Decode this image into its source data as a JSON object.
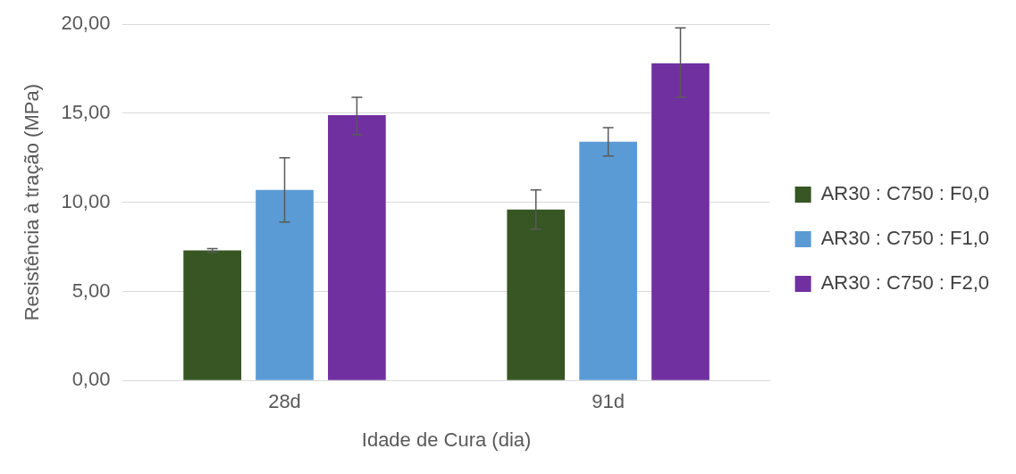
{
  "chart_data": {
    "type": "bar",
    "xlabel": "Idade de Cura (dia)",
    "ylabel": "Resistência à tração (MPa)",
    "categories": [
      "28d",
      "91d"
    ],
    "series": [
      {
        "name": "AR30 : C750 : F0,0",
        "color": "#375623",
        "values": [
          7.3,
          9.6
        ],
        "errors": [
          [
            7.2,
            7.4
          ],
          [
            8.5,
            10.7
          ]
        ]
      },
      {
        "name": "AR30 : C750 : F1,0",
        "color": "#5b9bd5",
        "values": [
          10.7,
          13.4
        ],
        "errors": [
          [
            8.9,
            12.5
          ],
          [
            12.6,
            14.2
          ]
        ]
      },
      {
        "name": "AR30 : C750 : F2,0",
        "color": "#7030a0",
        "values": [
          14.9,
          17.8
        ],
        "errors": [
          [
            13.8,
            15.9
          ],
          [
            15.9,
            19.8
          ]
        ]
      }
    ],
    "ylim": [
      0,
      20
    ],
    "yticks": [
      {
        "value": 0,
        "label": "0,00"
      },
      {
        "value": 5,
        "label": "5,00"
      },
      {
        "value": 10,
        "label": "10,00"
      },
      {
        "value": 15,
        "label": "15,00"
      },
      {
        "value": 20,
        "label": "20,00"
      }
    ],
    "grid": "y",
    "legend": "right"
  }
}
